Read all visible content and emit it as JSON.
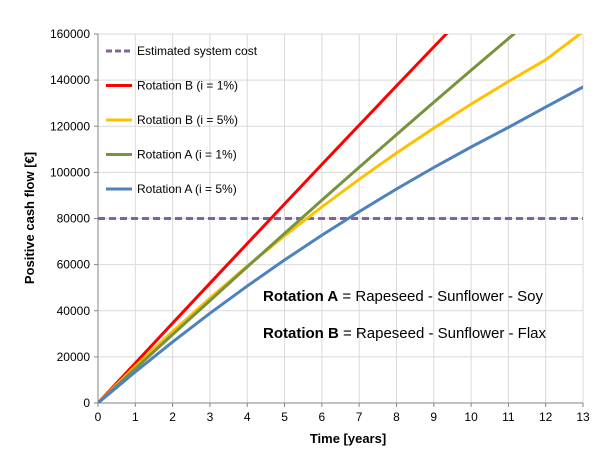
{
  "chart_data": {
    "type": "line",
    "xlabel": "Time [years]",
    "ylabel": "Positive cash flow [€]",
    "xlim": [
      0,
      13
    ],
    "ylim": [
      0,
      160000
    ],
    "x_ticks": [
      "0",
      "1",
      "2",
      "3",
      "4",
      "5",
      "6",
      "7",
      "8",
      "9",
      "10",
      "11",
      "12",
      "13"
    ],
    "y_ticks": [
      "0",
      "20000",
      "40000",
      "60000",
      "80000",
      "100000",
      "120000",
      "140000",
      "160000"
    ],
    "grid": true,
    "legend_position": "top-left",
    "series": [
      {
        "name": "Estimated system cost",
        "color": "#8064A2",
        "dashed": true,
        "points": [
          [
            0,
            80000
          ],
          [
            13,
            80000
          ]
        ]
      },
      {
        "name": "Rotation B (i = 1%)",
        "color": "#FF0000",
        "dashed": false,
        "points": [
          [
            0,
            0
          ],
          [
            1,
            17300
          ],
          [
            2,
            34600
          ],
          [
            3,
            51900
          ],
          [
            4,
            69100
          ],
          [
            5,
            86300
          ],
          [
            6,
            103400
          ],
          [
            7,
            120500
          ],
          [
            8,
            137500
          ],
          [
            9,
            154400
          ],
          [
            9.45,
            162000
          ]
        ]
      },
      {
        "name": "Rotation B (i = 5%)",
        "color": "#FFC000",
        "dashed": false,
        "points": [
          [
            0,
            0
          ],
          [
            1,
            15900
          ],
          [
            2,
            31000
          ],
          [
            3,
            45500
          ],
          [
            4,
            59300
          ],
          [
            5,
            72500
          ],
          [
            6,
            85000
          ],
          [
            7,
            97000
          ],
          [
            8,
            108400
          ],
          [
            9,
            119200
          ],
          [
            10,
            129600
          ],
          [
            11,
            139400
          ],
          [
            12,
            148800
          ],
          [
            13,
            161000
          ]
        ]
      },
      {
        "name": "Rotation A (i = 1%)",
        "color": "#77933C",
        "dashed": false,
        "points": [
          [
            0,
            0
          ],
          [
            1,
            14900
          ],
          [
            2,
            29700
          ],
          [
            3,
            44400
          ],
          [
            4,
            59000
          ],
          [
            5,
            73500
          ],
          [
            6,
            87900
          ],
          [
            7,
            102200
          ],
          [
            8,
            116400
          ],
          [
            9,
            130400
          ],
          [
            10,
            144300
          ],
          [
            11,
            158000
          ],
          [
            11.15,
            160000
          ]
        ]
      },
      {
        "name": "Rotation A (i = 5%)",
        "color": "#4F81BD",
        "dashed": false,
        "points": [
          [
            0,
            0
          ],
          [
            1,
            13500
          ],
          [
            2,
            26500
          ],
          [
            3,
            38900
          ],
          [
            4,
            50700
          ],
          [
            5,
            62000
          ],
          [
            6,
            72700
          ],
          [
            7,
            83000
          ],
          [
            8,
            92800
          ],
          [
            9,
            102100
          ],
          [
            10,
            111000
          ],
          [
            11,
            119500
          ],
          [
            12,
            128300
          ],
          [
            13,
            137000
          ]
        ]
      }
    ],
    "annotations": [
      {
        "bold": "Rotation A",
        "rest": " = Rapeseed - Sunflower - Soy"
      },
      {
        "bold": "Rotation B",
        "rest": " = Rapeseed - Sunflower - Flax"
      }
    ]
  }
}
